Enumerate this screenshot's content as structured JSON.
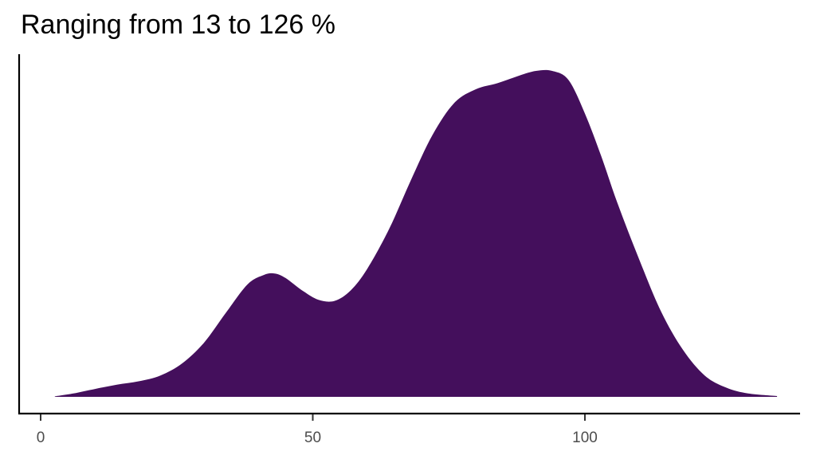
{
  "chart_data": {
    "type": "area",
    "subtype": "density",
    "title": "Ranging from 13 to 126 %",
    "xlabel": "",
    "ylabel": "",
    "xlim": [
      -2,
      140
    ],
    "x_ticks": [
      0,
      50,
      100
    ],
    "x_tick_labels": [
      "0",
      "50",
      "100"
    ],
    "y_ticks": [],
    "grid": false,
    "legend": "none",
    "fill_color": "#440F5C",
    "series": [
      {
        "name": "density",
        "x": [
          2.6,
          6,
          10,
          14,
          18,
          22,
          26,
          30,
          34,
          38,
          41,
          43,
          45,
          48,
          51,
          54,
          57,
          60,
          64,
          68,
          72,
          76,
          80,
          84,
          88,
          91,
          94,
          97,
          100,
          103,
          106,
          110,
          114,
          118,
          122,
          126,
          130,
          135.3
        ],
        "y": [
          0.003,
          0.022,
          0.052,
          0.08,
          0.102,
          0.14,
          0.22,
          0.355,
          0.55,
          0.738,
          0.8,
          0.81,
          0.78,
          0.7,
          0.638,
          0.63,
          0.7,
          0.84,
          1.1,
          1.42,
          1.72,
          1.93,
          2.02,
          2.06,
          2.11,
          2.14,
          2.14,
          2.08,
          1.86,
          1.58,
          1.27,
          0.9,
          0.56,
          0.31,
          0.14,
          0.06,
          0.022,
          0.005
        ]
      }
    ],
    "ylim": [
      0,
      2.2
    ]
  }
}
